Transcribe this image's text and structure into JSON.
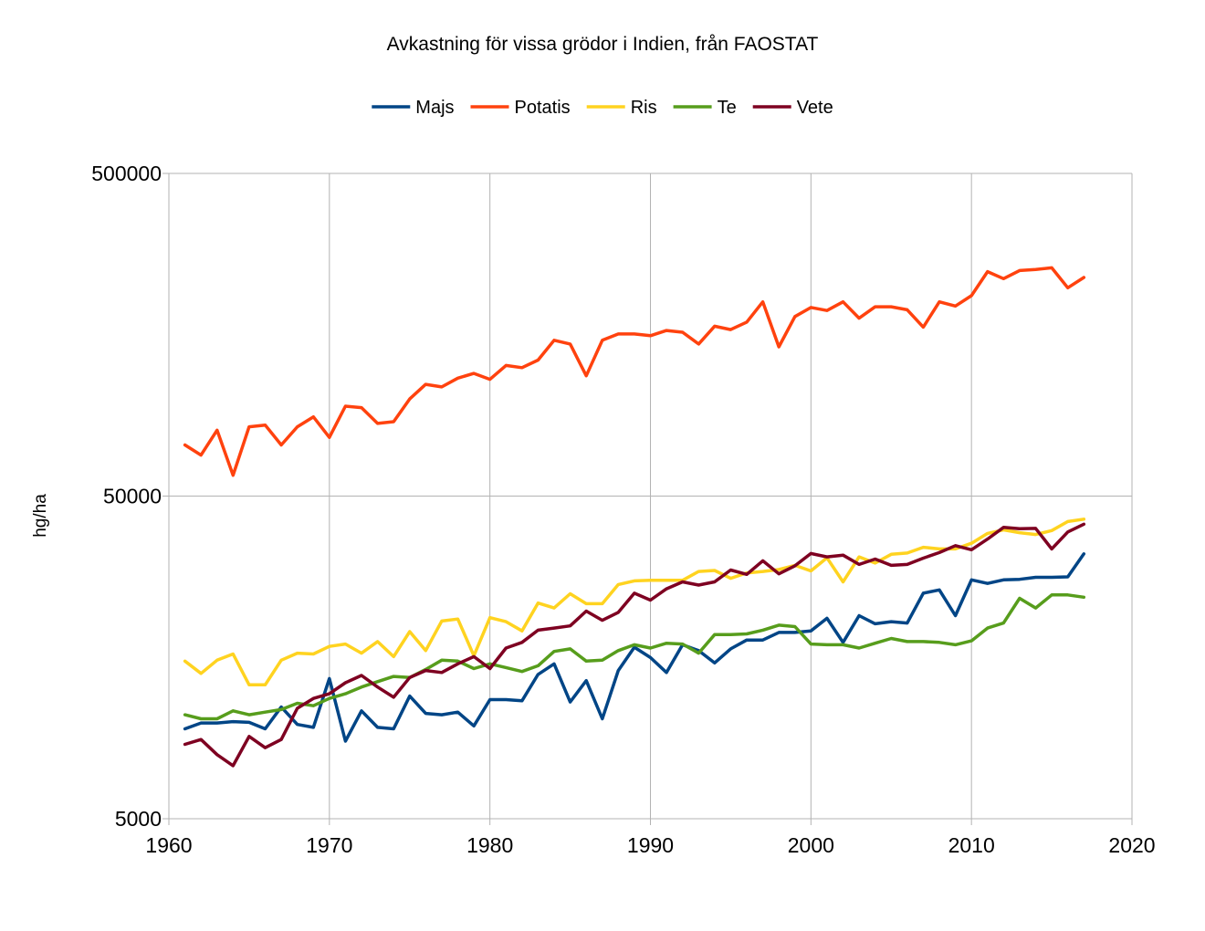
{
  "chart_data": {
    "type": "line",
    "title": "Avkastning för vissa grödor i Indien, från FAOSTAT",
    "xlabel": "",
    "ylabel": "hg/ha",
    "xlim": [
      1960,
      2020
    ],
    "ylim": [
      5000,
      500000
    ],
    "yscale": "log",
    "x_ticks": [
      "1960",
      "1970",
      "1980",
      "1990",
      "2000",
      "2010",
      "2020"
    ],
    "y_ticks": [
      "5000",
      "50000",
      "500000"
    ],
    "grid": true,
    "legend_position": "top",
    "x": [
      1961,
      1962,
      1963,
      1964,
      1965,
      1966,
      1967,
      1968,
      1969,
      1970,
      1971,
      1972,
      1973,
      1974,
      1975,
      1976,
      1977,
      1978,
      1979,
      1980,
      1981,
      1982,
      1983,
      1984,
      1985,
      1986,
      1987,
      1988,
      1989,
      1990,
      1991,
      1992,
      1993,
      1994,
      1995,
      1996,
      1997,
      1998,
      1999,
      2000,
      2001,
      2002,
      2003,
      2004,
      2005,
      2006,
      2007,
      2008,
      2009,
      2010,
      2011,
      2012,
      2013,
      2014,
      2015,
      2016,
      2017
    ],
    "series": [
      {
        "name": "Majs",
        "color": "#004586",
        "values": [
          9500,
          9900,
          9900,
          10000,
          9950,
          9500,
          11100,
          9800,
          9600,
          13600,
          8700,
          10800,
          9600,
          9500,
          12000,
          10600,
          10500,
          10700,
          9700,
          11700,
          11700,
          11600,
          14000,
          15100,
          11500,
          13400,
          10200,
          14400,
          17000,
          15800,
          14200,
          17300,
          16600,
          15200,
          16800,
          17900,
          17900,
          18900,
          18900,
          19100,
          20900,
          17600,
          21300,
          20100,
          20400,
          20200,
          25000,
          25600,
          21300,
          27500,
          26800,
          27500,
          27600,
          28000,
          28000,
          28100,
          33100
        ]
      },
      {
        "name": "Potatis",
        "color": "#ff420e",
        "values": [
          72000,
          67000,
          80000,
          58000,
          82000,
          83000,
          72000,
          82000,
          88000,
          76000,
          95000,
          94000,
          84000,
          85000,
          100000,
          111000,
          109000,
          116000,
          120000,
          115000,
          127000,
          125000,
          132000,
          152000,
          148000,
          118000,
          152000,
          159000,
          159000,
          157000,
          163000,
          161000,
          148000,
          168000,
          164000,
          173000,
          200000,
          145000,
          180000,
          192000,
          188000,
          200000,
          178000,
          193000,
          193000,
          189000,
          167000,
          200000,
          194000,
          209000,
          248000,
          236000,
          250000,
          252000,
          255000,
          221000,
          238000
        ]
      },
      {
        "name": "Ris",
        "color": "#ffd320",
        "values": [
          15400,
          14100,
          15500,
          16200,
          13000,
          13000,
          15500,
          16300,
          16200,
          17100,
          17400,
          16300,
          17700,
          15900,
          19000,
          16600,
          20500,
          20800,
          16000,
          21000,
          20400,
          19100,
          23300,
          22500,
          24900,
          23200,
          23200,
          26600,
          27300,
          27400,
          27400,
          27400,
          29200,
          29400,
          27800,
          28900,
          29200,
          29600,
          30500,
          29300,
          32200,
          27100,
          32400,
          31000,
          33000,
          33300,
          34700,
          34300,
          34300,
          35700,
          38300,
          39300,
          38500,
          38000,
          39100,
          41700,
          42400
        ]
      },
      {
        "name": "Te",
        "color": "#579d1c",
        "values": [
          10500,
          10200,
          10200,
          10800,
          10500,
          10700,
          10900,
          11400,
          11200,
          11800,
          12200,
          12800,
          13300,
          13800,
          13700,
          14500,
          15500,
          15400,
          14600,
          15100,
          14700,
          14300,
          14900,
          16500,
          16800,
          15400,
          15500,
          16600,
          17300,
          16900,
          17500,
          17400,
          16300,
          18600,
          18600,
          18700,
          19200,
          19900,
          19700,
          17400,
          17300,
          17300,
          16900,
          17500,
          18100,
          17700,
          17700,
          17600,
          17300,
          17800,
          19500,
          20200,
          24100,
          22500,
          24700,
          24700,
          24300
        ]
      },
      {
        "name": "Vete",
        "color": "#7e0021",
        "values": [
          8500,
          8800,
          7900,
          7300,
          9000,
          8300,
          8800,
          11000,
          11800,
          12200,
          13200,
          13900,
          12800,
          11900,
          13700,
          14400,
          14200,
          15100,
          15900,
          14600,
          16900,
          17600,
          19200,
          19500,
          19800,
          22000,
          20600,
          21800,
          25000,
          23800,
          25800,
          27100,
          26500,
          27100,
          29500,
          28600,
          31500,
          28700,
          30400,
          33200,
          32400,
          32800,
          30700,
          31900,
          30500,
          30700,
          32100,
          33400,
          35100,
          34100,
          36800,
          40000,
          39600,
          39700,
          34300,
          38700,
          40900
        ]
      }
    ]
  }
}
